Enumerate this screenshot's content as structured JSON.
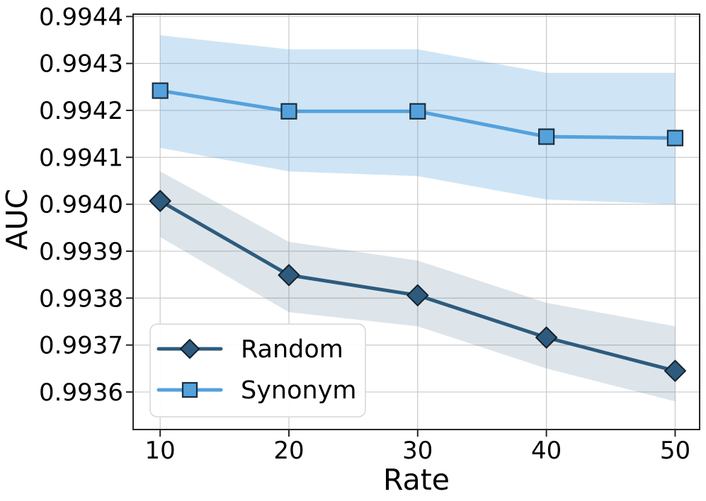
{
  "chart_data": {
    "type": "line",
    "title": "",
    "xlabel": "Rate",
    "ylabel": "AUC",
    "x": [
      10,
      20,
      30,
      40,
      50
    ],
    "xlim": [
      7.9,
      51.9
    ],
    "ylim": [
      0.99352,
      0.994405
    ],
    "xticks": [
      10,
      20,
      30,
      40,
      50
    ],
    "yticks": [
      0.9936,
      0.9937,
      0.9938,
      0.9939,
      0.994,
      0.9941,
      0.9942,
      0.9943,
      0.9944
    ],
    "grid": true,
    "legend_position": "lower-left",
    "legend_labels": [
      "Random",
      "Synonym"
    ],
    "series": [
      {
        "name": "Random",
        "marker": "diamond",
        "color": "#2E5B7D",
        "marker_edge": "#15212C",
        "band_color": "rgba(46,91,125,0.16)",
        "values": [
          0.994007,
          0.993849,
          0.993806,
          0.993716,
          0.993645
        ],
        "band_upper": [
          0.99407,
          0.99392,
          0.99388,
          0.99379,
          0.99374
        ],
        "band_lower": [
          0.99393,
          0.99377,
          0.99374,
          0.99365,
          0.99358
        ]
      },
      {
        "name": "Synonym",
        "marker": "square",
        "color": "#54A1DC",
        "marker_edge": "#1C2E3D",
        "band_color": "rgba(84,161,220,0.28)",
        "values": [
          0.994242,
          0.994198,
          0.994198,
          0.994144,
          0.994141
        ],
        "band_upper": [
          0.99436,
          0.99433,
          0.99433,
          0.99428,
          0.99428
        ],
        "band_lower": [
          0.99412,
          0.99407,
          0.99406,
          0.99401,
          0.994
        ]
      }
    ],
    "colors": {
      "gridline": "#c9c9c9",
      "spine": "#262626",
      "tick": "#262626",
      "legend_border": "#d6d6d6",
      "legend_fill": "rgba(255,255,255,0.92)"
    }
  }
}
